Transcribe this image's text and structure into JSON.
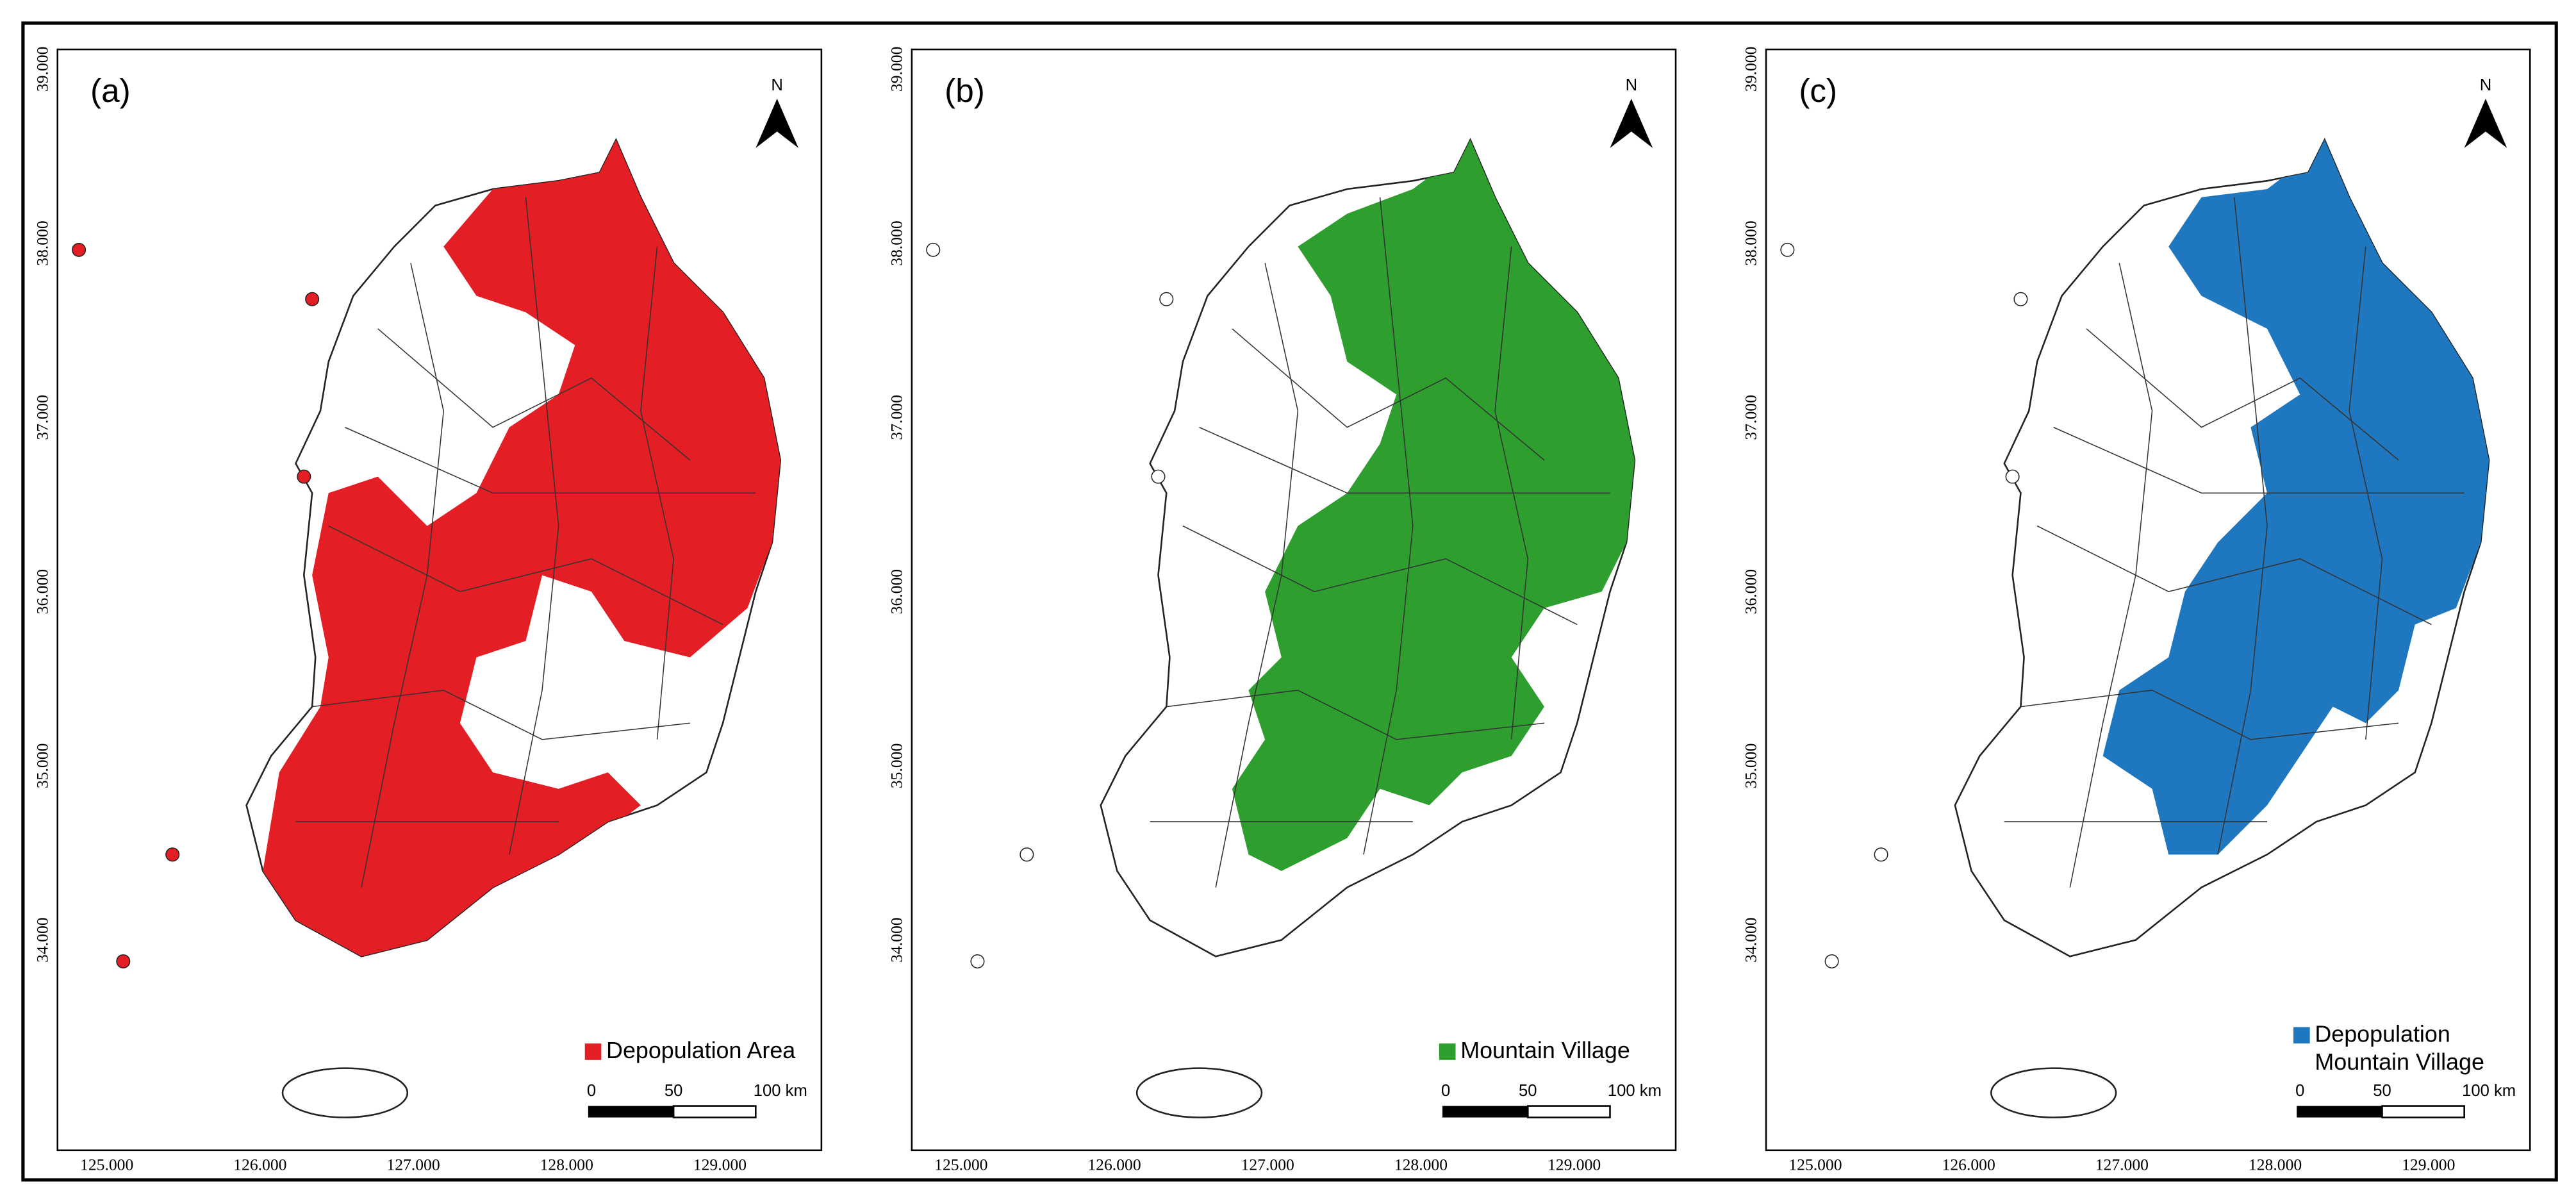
{
  "panels": [
    {
      "label": "(a)",
      "legend": [
        "Depopulation Area"
      ],
      "color": "#e31e24"
    },
    {
      "label": "(b)",
      "legend": [
        "Mountain Village"
      ],
      "color": "#2e9e2e"
    },
    {
      "label": "(c)",
      "legend": [
        "Depopulation",
        "Mountain Village"
      ],
      "color": "#1f77bf"
    }
  ],
  "x_ticks": [
    "125.000",
    "126.000",
    "127.000",
    "128.000",
    "129.000"
  ],
  "y_ticks": [
    "39.000",
    "38.000",
    "37.000",
    "36.000",
    "35.000",
    "34.000"
  ],
  "north": "N",
  "scale_bar": [
    "0",
    "50",
    "100 km"
  ]
}
